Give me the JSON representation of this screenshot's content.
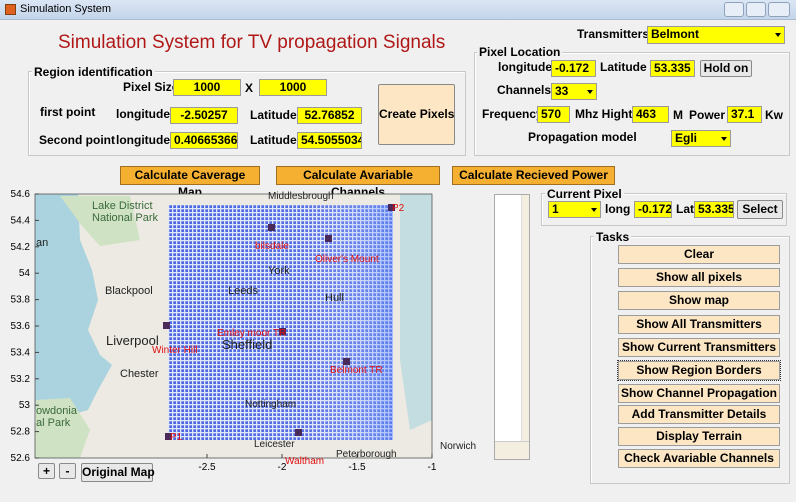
{
  "window": {
    "title": "Simulation System"
  },
  "header": {
    "title": "Simulation System for TV propagation Signals"
  },
  "transmitters": {
    "label": "Transmitters",
    "selected": "Belmont"
  },
  "pixel_location": {
    "title": "Pixel Location",
    "longitude_label": "longitude",
    "longitude": "-0.172",
    "latitude_label": "Latitude",
    "latitude": "53.335",
    "hold_button": "Hold on",
    "channels_label": "Channels",
    "channel": "33",
    "frequency_label": "Frequency",
    "frequency": "570",
    "frequency_unit": "Mhz Hight",
    "height": "463",
    "height_unit": "M",
    "power_label": "Power",
    "power": "37.1",
    "power_unit": "Kw",
    "model_label": "Propagation model",
    "model": "Egli"
  },
  "region": {
    "title": "Region identification",
    "pixel_size_label": "Pixel Size",
    "pixel_size_x": "1000",
    "times": "X",
    "pixel_size_y": "1000",
    "first_point_label": "first point",
    "second_point_label": "Second point",
    "longitude_label": "longitude",
    "latitude_label": "Latitude",
    "first_longitude": "-2.50257",
    "first_latitude": "52.76852",
    "second_longitude": "0.40665366",
    "second_latitude": "54.5055034",
    "create_button": "Create Pixels"
  },
  "actions": [
    "Calculate Caverage Map",
    "Calculate Avariable Channels",
    "Calculate Recieved Power"
  ],
  "map": {
    "yticks": [
      52.6,
      52.8,
      53,
      53.2,
      53.4,
      53.6,
      53.8,
      54,
      54.2,
      54.4,
      54.6
    ],
    "xticks": [
      -2.5,
      -2,
      -1.5,
      -1
    ],
    "places": [
      "Lake District",
      "National Park",
      "Middlesbrough",
      "an",
      "Blackpool",
      "Liverpool",
      "Chester",
      "Leeds",
      "York",
      "Hull",
      "Sheffield",
      "Nottingham",
      "Leicester",
      "Peterborough",
      "Norwich",
      "owdonia",
      "al Park"
    ],
    "markers": [
      "P2",
      "bilsdale",
      "Oliver's Mount",
      "Emley moor TR",
      "Winter Hill",
      "Belmont TR",
      "Waltham",
      "P1"
    ]
  },
  "zoom": {
    "in": "+",
    "out": "-",
    "original": "Original Map"
  },
  "current_pixel": {
    "title": "Current Pixel",
    "index": "1",
    "long_label": "long",
    "longitude": "-0.172",
    "lat_label": "Lat",
    "latitude": "53.335",
    "select_button": "Select"
  },
  "tasks": {
    "title": "Tasks",
    "buttons": [
      "Clear",
      "Show all pixels",
      "Show map",
      "Show All Transmitters",
      "Show Current Transmitters",
      "Show Region Borders",
      "Show Channel Propagation",
      "Add Transmitter Details",
      "Display Terrain",
      "Check Avariable Channels"
    ]
  }
}
